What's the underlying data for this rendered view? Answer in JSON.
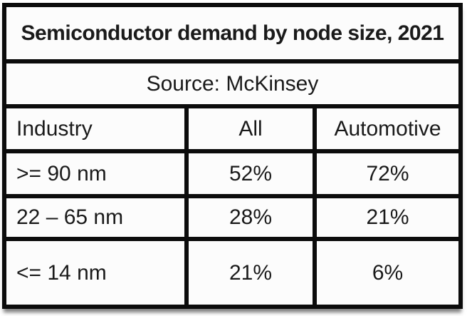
{
  "table": {
    "title": "Semiconductor demand by node size, 2021",
    "source_label": "Source: McKinsey",
    "columns": {
      "industry": "Industry",
      "all": "All",
      "automotive": "Automotive"
    },
    "rows": [
      {
        "industry": ">= 90 nm",
        "all": "52%",
        "automotive": "72%"
      },
      {
        "industry": "22 – 65 nm",
        "all": "28%",
        "automotive": "21%"
      },
      {
        "industry": "<= 14 nm",
        "all": "21%",
        "automotive": "6%"
      }
    ],
    "colors": {
      "border": "#0c0c0c",
      "text": "#1a1a1a",
      "cell_background": "#fcfcfc"
    }
  },
  "chart_data": {
    "type": "table",
    "title": "Semiconductor demand by node size, 2021",
    "source": "Source: McKinsey",
    "columns": [
      "Industry",
      "All",
      "Automotive"
    ],
    "categories": [
      ">= 90 nm",
      "22 – 65 nm",
      "<= 14 nm"
    ],
    "series": [
      {
        "name": "All",
        "values": [
          52,
          28,
          21
        ]
      },
      {
        "name": "Automotive",
        "values": [
          72,
          21,
          6
        ]
      }
    ],
    "unit": "%",
    "layout": {
      "grid": "thick black borders",
      "legend_position": "none"
    }
  }
}
